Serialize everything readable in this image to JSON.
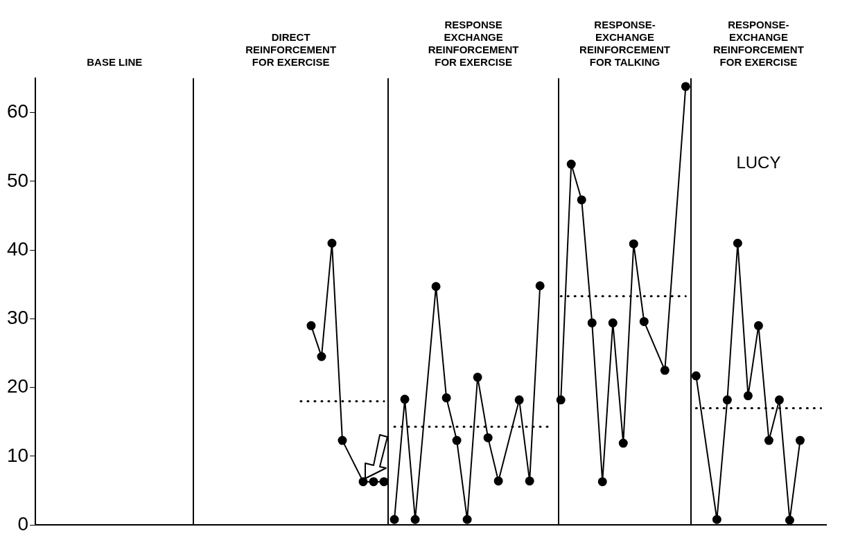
{
  "chart_data": {
    "type": "line",
    "annotations": [
      "BASE LINE",
      "DIRECT\nREINFORCEMENT\nFOR EXERCISE",
      "RESPONSE\nEXCHANGE\nREINFORCEMENT\nFOR EXERCISE",
      "RESPONSE-\nEXCHANGE\nREINFORCEMENT\nFOR TALKING",
      "RESPONSE-\nEXCHANGE\nREINFORCEMENT\nFOR EXERCISE",
      "LUCY"
    ],
    "categories": [
      null,
      null,
      null,
      null,
      null,
      null,
      null,
      null,
      null,
      null,
      null,
      null,
      null,
      null,
      null,
      null,
      null,
      null,
      null,
      null,
      null,
      null,
      null,
      null,
      null,
      null,
      null,
      null,
      null,
      null,
      null,
      null,
      null,
      null,
      null,
      null,
      null,
      null,
      null,
      null,
      null,
      null,
      null,
      null,
      null,
      null,
      null,
      null,
      null,
      null,
      null,
      null,
      null,
      null,
      null,
      null,
      null,
      null,
      null,
      null,
      null,
      null,
      null,
      null,
      null,
      null,
      null,
      null,
      null,
      null,
      null,
      null,
      null,
      null,
      null,
      null
    ],
    "series": [
      {
        "color": "#000000",
        "values": [
          null,
          null,
          null,
          null,
          null,
          null,
          null,
          null,
          null,
          null,
          null,
          null,
          null,
          null,
          null,
          null,
          null,
          null,
          null,
          null,
          null,
          null,
          null,
          null,
          null,
          null,
          29,
          24.5,
          41,
          12.3,
          null,
          6.3,
          6.3,
          6.3,
          null,
          null,
          null,
          null,
          null,
          null,
          null,
          null,
          null,
          null,
          null,
          null,
          null,
          null,
          null,
          null,
          null,
          null,
          null,
          null,
          null,
          null,
          null,
          null,
          null,
          null,
          null,
          null,
          null,
          null,
          null,
          null,
          null,
          null,
          null,
          null,
          null,
          null,
          null,
          null,
          null,
          null
        ]
      },
      {
        "color": "#000000",
        "values": [
          null,
          null,
          null,
          null,
          null,
          null,
          null,
          null,
          null,
          null,
          null,
          null,
          null,
          null,
          null,
          null,
          null,
          null,
          null,
          null,
          null,
          null,
          null,
          null,
          null,
          null,
          null,
          null,
          null,
          null,
          null,
          null,
          null,
          null,
          0.8,
          18.3,
          0.8,
          null,
          34.7,
          18.5,
          12.3,
          0.8,
          21.5,
          12.7,
          6.4,
          null,
          18.2,
          6.4,
          34.8,
          null,
          null,
          null,
          null,
          null,
          null,
          null,
          null,
          null,
          null,
          null,
          null,
          null,
          null,
          null,
          null,
          null,
          null,
          null,
          null,
          null,
          null,
          null,
          null,
          null,
          null,
          null
        ]
      },
      {
        "color": "#000000",
        "values": [
          null,
          null,
          null,
          null,
          null,
          null,
          null,
          null,
          null,
          null,
          null,
          null,
          null,
          null,
          null,
          null,
          null,
          null,
          null,
          null,
          null,
          null,
          null,
          null,
          null,
          null,
          null,
          null,
          null,
          null,
          null,
          null,
          null,
          null,
          null,
          null,
          null,
          null,
          null,
          null,
          null,
          null,
          null,
          null,
          null,
          null,
          null,
          null,
          null,
          null,
          18.2,
          52.5,
          47.3,
          29.4,
          6.3,
          29.4,
          11.9,
          40.9,
          29.6,
          null,
          22.5,
          null,
          63.8,
          null,
          null,
          null,
          null,
          null,
          null,
          null,
          null,
          null,
          null,
          null,
          null,
          null
        ]
      },
      {
        "color": "#000000",
        "values": [
          null,
          null,
          null,
          null,
          null,
          null,
          null,
          null,
          null,
          null,
          null,
          null,
          null,
          null,
          null,
          null,
          null,
          null,
          null,
          null,
          null,
          null,
          null,
          null,
          null,
          null,
          null,
          null,
          null,
          null,
          null,
          null,
          null,
          null,
          null,
          null,
          null,
          null,
          null,
          null,
          null,
          null,
          null,
          null,
          null,
          null,
          null,
          null,
          null,
          null,
          null,
          null,
          null,
          null,
          null,
          null,
          null,
          null,
          null,
          null,
          null,
          null,
          null,
          21.7,
          null,
          0.8,
          18.2,
          41,
          18.8,
          29,
          12.3,
          18.2,
          0.7,
          12.3,
          null,
          null
        ]
      },
      {
        "color": "#000000",
        "marker": "none",
        "line_style": "dotted",
        "values": [
          null,
          null,
          null,
          null,
          null,
          null,
          null,
          null,
          null,
          null,
          null,
          null,
          null,
          null,
          null,
          null,
          null,
          null,
          null,
          null,
          null,
          null,
          null,
          null,
          null,
          18,
          null,
          null,
          null,
          null,
          null,
          null,
          null,
          18,
          null,
          null,
          null,
          null,
          null,
          null,
          null,
          null,
          null,
          null,
          null,
          null,
          null,
          null,
          null,
          null,
          null,
          null,
          null,
          null,
          null,
          null,
          null,
          null,
          null,
          null,
          null,
          null,
          null,
          null,
          null,
          null,
          null,
          null,
          null,
          null,
          null,
          null,
          null,
          null,
          null,
          null
        ]
      },
      {
        "color": "#000000",
        "marker": "none",
        "line_style": "dotted",
        "values": [
          null,
          null,
          null,
          null,
          null,
          null,
          null,
          null,
          null,
          null,
          null,
          null,
          null,
          null,
          null,
          null,
          null,
          null,
          null,
          null,
          null,
          null,
          null,
          null,
          null,
          null,
          null,
          null,
          null,
          null,
          null,
          null,
          null,
          null,
          14.3,
          null,
          null,
          null,
          null,
          null,
          null,
          null,
          null,
          null,
          null,
          null,
          null,
          null,
          null,
          14.3,
          null,
          null,
          null,
          null,
          null,
          null,
          null,
          null,
          null,
          null,
          null,
          null,
          null,
          null,
          null,
          null,
          null,
          null,
          null,
          null,
          null,
          null,
          null,
          null,
          null,
          null
        ]
      },
      {
        "color": "#000000",
        "marker": "none",
        "line_style": "dotted",
        "values": [
          null,
          null,
          null,
          null,
          null,
          null,
          null,
          null,
          null,
          null,
          null,
          null,
          null,
          null,
          null,
          null,
          null,
          null,
          null,
          null,
          null,
          null,
          null,
          null,
          null,
          null,
          null,
          null,
          null,
          null,
          null,
          null,
          null,
          null,
          null,
          null,
          null,
          null,
          null,
          null,
          null,
          null,
          null,
          null,
          null,
          null,
          null,
          null,
          null,
          null,
          33.3,
          null,
          null,
          null,
          null,
          null,
          null,
          null,
          null,
          null,
          null,
          null,
          33.3,
          null,
          null,
          null,
          null,
          null,
          null,
          null,
          null,
          null,
          null,
          null,
          null,
          null
        ]
      },
      {
        "color": "#000000",
        "marker": "none",
        "line_style": "dotted",
        "values": [
          null,
          null,
          null,
          null,
          null,
          null,
          null,
          null,
          null,
          null,
          null,
          null,
          null,
          null,
          null,
          null,
          null,
          null,
          null,
          null,
          null,
          null,
          null,
          null,
          null,
          null,
          null,
          null,
          null,
          null,
          null,
          null,
          null,
          null,
          null,
          null,
          null,
          null,
          null,
          null,
          null,
          null,
          null,
          null,
          null,
          null,
          null,
          null,
          null,
          null,
          null,
          null,
          null,
          null,
          null,
          null,
          null,
          null,
          null,
          null,
          null,
          null,
          null,
          17,
          null,
          null,
          null,
          null,
          null,
          null,
          null,
          null,
          null,
          null,
          null,
          17
        ]
      }
    ],
    "marker": "circle",
    "line_style": "solid",
    "ylim": [
      0,
      65
    ],
    "yticks": [
      0,
      10,
      20,
      30,
      40,
      50,
      60
    ],
    "tick_labels": "y",
    "grid": false,
    "legend": false
  }
}
